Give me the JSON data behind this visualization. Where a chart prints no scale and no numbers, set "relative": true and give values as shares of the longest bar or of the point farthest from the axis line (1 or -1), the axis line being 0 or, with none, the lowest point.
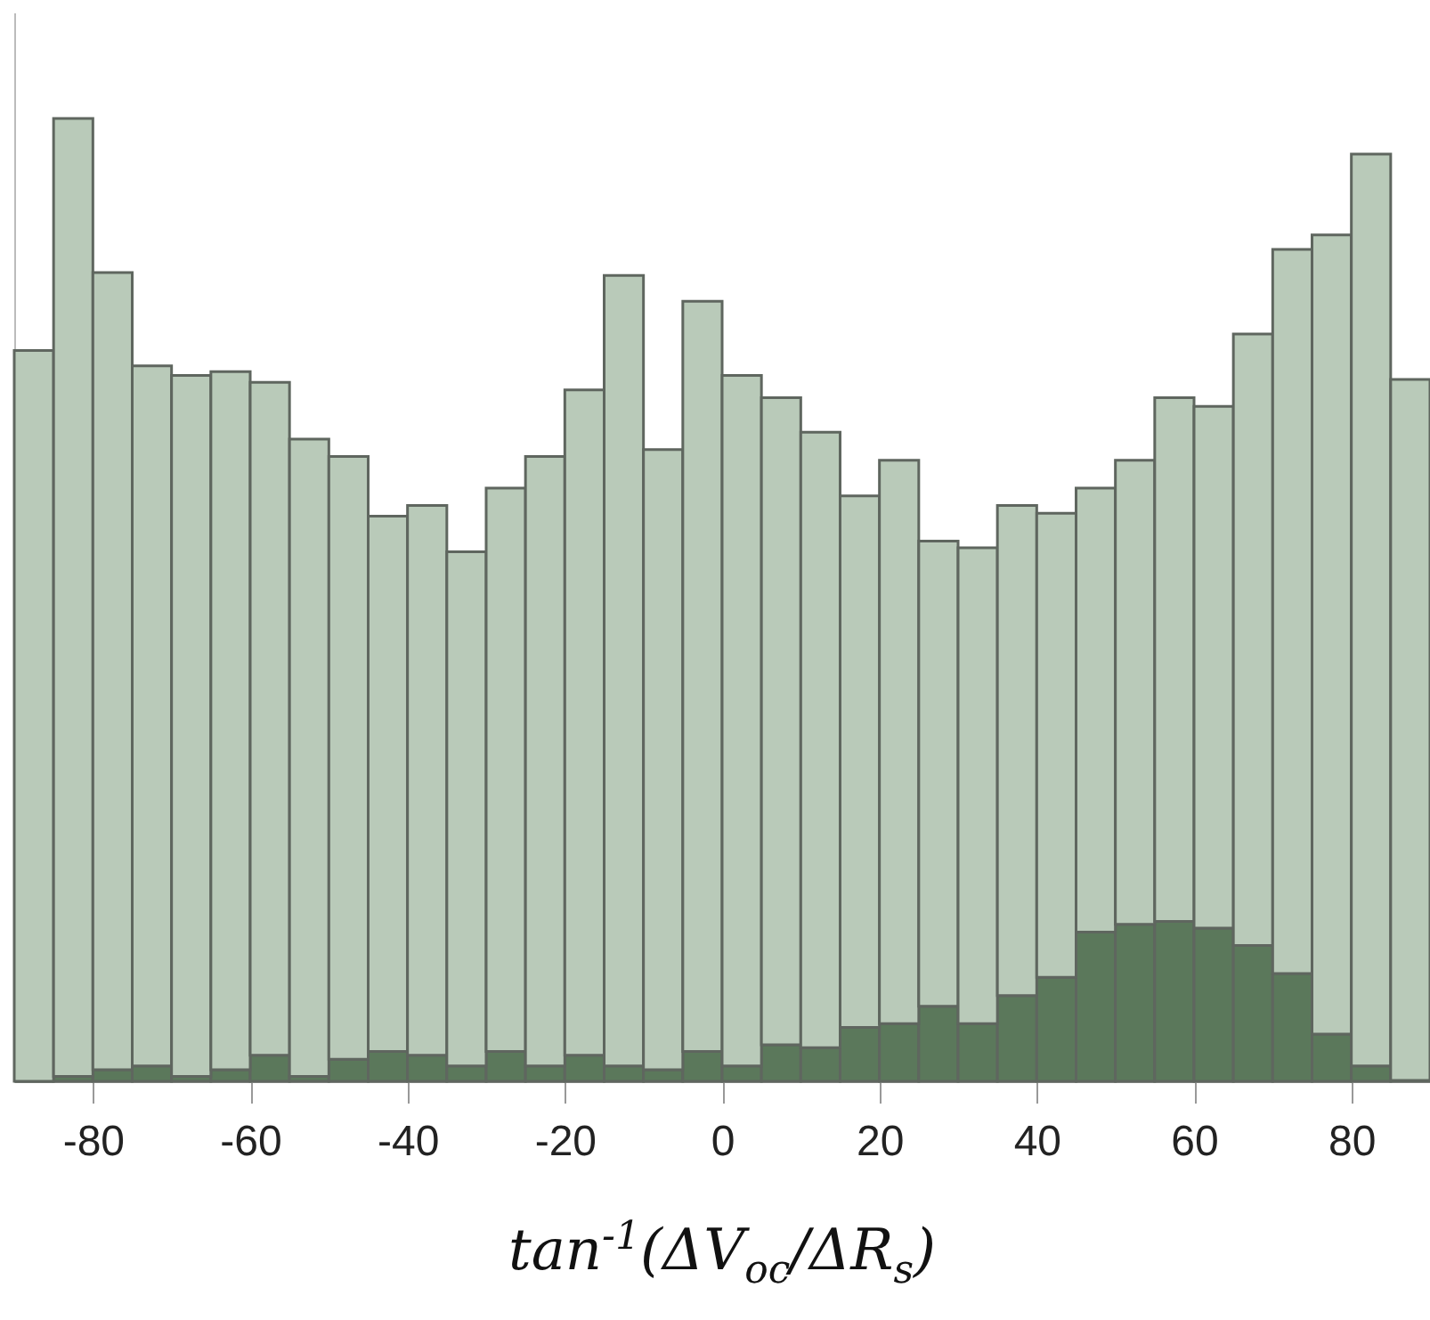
{
  "chart_data": {
    "type": "bar",
    "xlabel": "tan$^{-1}$(ΔV$_{oc}$/ΔR$_{s}$)",
    "relative": true,
    "stacked": true,
    "x": [
      -87.5,
      -82.5,
      -77.5,
      -72.5,
      -67.5,
      -62.5,
      -57.5,
      -52.5,
      -47.5,
      -42.5,
      -37.5,
      -32.5,
      -27.5,
      -22.5,
      -17.5,
      -12.5,
      -7.5,
      -2.5,
      2.5,
      7.5,
      12.5,
      17.5,
      22.5,
      27.5,
      32.5,
      37.5,
      42.5,
      47.5,
      52.5,
      57.5,
      62.5,
      67.5,
      72.5,
      77.5,
      82.5,
      87.5
    ],
    "series": [
      {
        "color": "#5b785b",
        "values": [
          null,
          0.005,
          0.012,
          0.016,
          0.005,
          0.012,
          0.027,
          0.005,
          0.023,
          0.031,
          0.027,
          0.016,
          0.031,
          0.016,
          0.027,
          0.016,
          0.012,
          0.031,
          0.016,
          0.038,
          0.035,
          0.056,
          0.06,
          0.078,
          0.06,
          0.089,
          0.108,
          0.155,
          0.163,
          0.166,
          0.159,
          0.141,
          0.112,
          0.049,
          0.016,
          0.001
        ]
      },
      {
        "color": "#b9cab9",
        "values": [
          0.759,
          0.995,
          0.828,
          0.727,
          0.728,
          0.725,
          0.699,
          0.662,
          0.626,
          0.556,
          0.571,
          0.534,
          0.585,
          0.633,
          0.691,
          0.821,
          0.644,
          0.779,
          0.717,
          0.672,
          0.639,
          0.552,
          0.585,
          0.483,
          0.494,
          0.509,
          0.482,
          0.461,
          0.482,
          0.544,
          0.542,
          0.635,
          0.752,
          0.83,
          0.947,
          0.728
        ]
      }
    ],
    "xlim": [
      -90,
      90
    ],
    "xticks": [
      -80,
      -60,
      -40,
      -20,
      0,
      20,
      40,
      60,
      80
    ],
    "grid": false
  }
}
